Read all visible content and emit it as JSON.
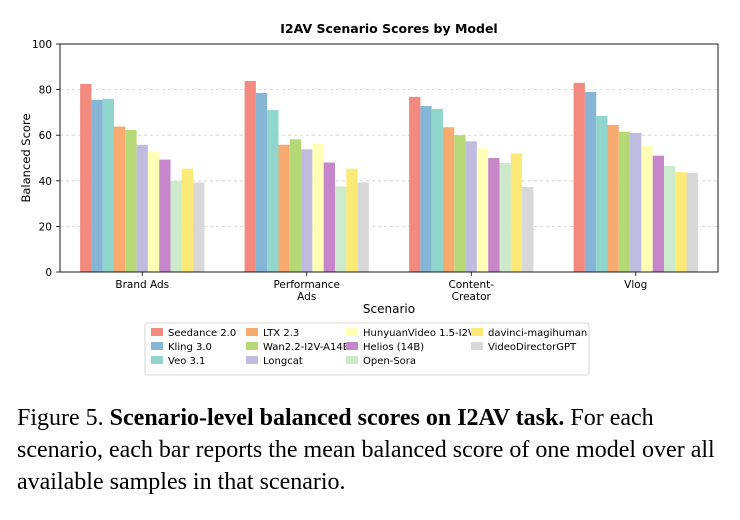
{
  "chart_data": {
    "type": "bar",
    "title": "I2AV Scenario Scores by Model",
    "xlabel": "Scenario",
    "ylabel": "Balanced Score",
    "ylim": [
      0,
      100
    ],
    "yticks": [
      "0",
      "20",
      "40",
      "60",
      "80",
      "100"
    ],
    "grid": "horizontal dashed",
    "legend_position": "bottom",
    "categories": [
      [
        "Brand Ads"
      ],
      [
        "Performance",
        "Ads"
      ],
      [
        "Content-",
        "Creator"
      ],
      [
        "Vlog"
      ]
    ],
    "series": [
      {
        "name": "Seedance 2.0",
        "color": "#f28a80",
        "values": [
          82.5,
          83.8,
          76.8,
          83.0
        ]
      },
      {
        "name": "Kling 3.0",
        "color": "#86b6d6",
        "values": [
          75.5,
          78.5,
          72.8,
          79.0
        ]
      },
      {
        "name": "Veo 3.1",
        "color": "#90d6cc",
        "values": [
          76.0,
          71.0,
          71.5,
          68.5
        ]
      },
      {
        "name": "LTX 2.3",
        "color": "#f8ab70",
        "values": [
          63.8,
          55.8,
          63.5,
          64.5
        ]
      },
      {
        "name": "Wan2.2-I2V-A14B",
        "color": "#b5d977",
        "values": [
          62.3,
          58.2,
          60.0,
          61.5
        ]
      },
      {
        "name": "Longcat",
        "color": "#bfbce0",
        "values": [
          55.8,
          53.8,
          57.3,
          61.0
        ]
      },
      {
        "name": "HunyuanVideo 1.5-I2V",
        "color": "#ffffb8",
        "values": [
          52.8,
          56.3,
          54.3,
          55.3
        ]
      },
      {
        "name": "Helios (14B)",
        "color": "#c587c9",
        "values": [
          49.3,
          48.0,
          50.0,
          51.0
        ]
      },
      {
        "name": "Open-Sora",
        "color": "#cdeacd",
        "values": [
          40.0,
          37.5,
          47.8,
          46.5
        ]
      },
      {
        "name": "davinci-magihuman",
        "color": "#fbe978",
        "values": [
          45.3,
          45.3,
          52.0,
          43.8
        ]
      },
      {
        "name": "VideoDirectorGPT",
        "color": "#d8d8d8",
        "values": [
          39.3,
          39.3,
          37.3,
          43.5
        ]
      }
    ]
  },
  "caption": {
    "prefix": "Figure 5. ",
    "bold": "Scenario-level balanced scores on I2AV task.",
    "rest": " For each scenario, each bar reports the mean balanced score of one model over all available samples in that scenario."
  }
}
